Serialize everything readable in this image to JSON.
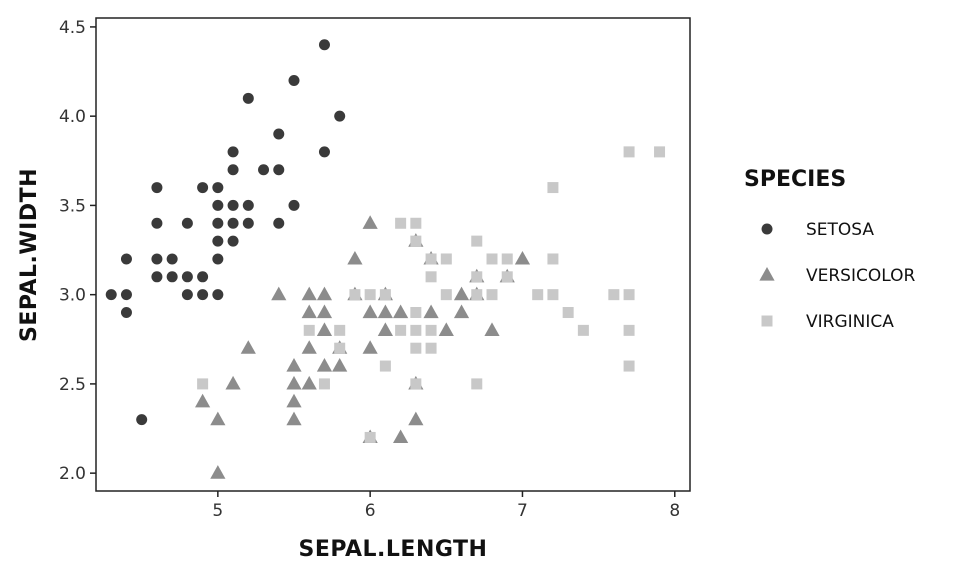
{
  "chart_data": {
    "type": "scatter",
    "xlabel": "SEPAL.LENGTH",
    "ylabel": "SEPAL.WIDTH",
    "xlim": [
      4.2,
      8.1
    ],
    "ylim": [
      1.9,
      4.55
    ],
    "x_ticks": [
      {
        "value": 5,
        "label": "5"
      },
      {
        "value": 6,
        "label": "6"
      },
      {
        "value": 7,
        "label": "7"
      },
      {
        "value": 8,
        "label": "8"
      }
    ],
    "y_ticks": [
      {
        "value": 2.0,
        "label": "2.0"
      },
      {
        "value": 2.5,
        "label": "2.5"
      },
      {
        "value": 3.0,
        "label": "3.0"
      },
      {
        "value": 3.5,
        "label": "3.5"
      },
      {
        "value": 4.0,
        "label": "4.0"
      },
      {
        "value": 4.5,
        "label": "4.5"
      }
    ],
    "grid": false,
    "legend": {
      "title": "SPECIES",
      "position": "right"
    },
    "series": [
      {
        "name": "SETOSA",
        "marker": "circle",
        "color": "#3a3a3a",
        "points": [
          [
            4.3,
            3.0
          ],
          [
            4.4,
            3.0
          ],
          [
            4.4,
            2.9
          ],
          [
            4.4,
            3.2
          ],
          [
            4.5,
            2.3
          ],
          [
            4.6,
            3.1
          ],
          [
            4.6,
            3.2
          ],
          [
            4.6,
            3.4
          ],
          [
            4.6,
            3.6
          ],
          [
            4.7,
            3.2
          ],
          [
            4.7,
            3.1
          ],
          [
            4.8,
            3.0
          ],
          [
            4.8,
            3.1
          ],
          [
            4.8,
            3.4
          ],
          [
            4.9,
            3.0
          ],
          [
            4.9,
            3.1
          ],
          [
            4.9,
            3.6
          ],
          [
            5.0,
            3.0
          ],
          [
            5.0,
            3.2
          ],
          [
            5.0,
            3.3
          ],
          [
            5.0,
            3.4
          ],
          [
            5.0,
            3.5
          ],
          [
            5.0,
            3.6
          ],
          [
            5.1,
            3.3
          ],
          [
            5.1,
            3.4
          ],
          [
            5.1,
            3.5
          ],
          [
            5.1,
            3.7
          ],
          [
            5.1,
            3.8
          ],
          [
            5.2,
            3.4
          ],
          [
            5.2,
            3.5
          ],
          [
            5.2,
            4.1
          ],
          [
            5.3,
            3.7
          ],
          [
            5.4,
            3.4
          ],
          [
            5.4,
            3.7
          ],
          [
            5.4,
            3.9
          ],
          [
            5.5,
            3.5
          ],
          [
            5.5,
            4.2
          ],
          [
            5.7,
            3.8
          ],
          [
            5.7,
            4.4
          ],
          [
            5.8,
            4.0
          ]
        ]
      },
      {
        "name": "VERSICOLOR",
        "marker": "triangle",
        "color": "#8c8c8c",
        "points": [
          [
            4.9,
            2.4
          ],
          [
            5.0,
            2.0
          ],
          [
            5.0,
            2.3
          ],
          [
            5.1,
            2.5
          ],
          [
            5.2,
            2.7
          ],
          [
            5.4,
            3.0
          ],
          [
            5.5,
            2.3
          ],
          [
            5.5,
            2.4
          ],
          [
            5.5,
            2.5
          ],
          [
            5.5,
            2.6
          ],
          [
            5.6,
            2.5
          ],
          [
            5.6,
            2.7
          ],
          [
            5.6,
            2.9
          ],
          [
            5.6,
            3.0
          ],
          [
            5.7,
            2.6
          ],
          [
            5.7,
            2.8
          ],
          [
            5.7,
            2.9
          ],
          [
            5.7,
            3.0
          ],
          [
            5.8,
            2.6
          ],
          [
            5.8,
            2.7
          ],
          [
            5.9,
            3.0
          ],
          [
            5.9,
            3.2
          ],
          [
            6.0,
            2.2
          ],
          [
            6.0,
            2.7
          ],
          [
            6.0,
            2.9
          ],
          [
            6.0,
            3.4
          ],
          [
            6.1,
            2.8
          ],
          [
            6.1,
            2.9
          ],
          [
            6.1,
            3.0
          ],
          [
            6.2,
            2.2
          ],
          [
            6.2,
            2.9
          ],
          [
            6.3,
            2.3
          ],
          [
            6.3,
            2.5
          ],
          [
            6.3,
            3.3
          ],
          [
            6.4,
            2.9
          ],
          [
            6.4,
            3.2
          ],
          [
            6.5,
            2.8
          ],
          [
            6.6,
            2.9
          ],
          [
            6.6,
            3.0
          ],
          [
            6.7,
            3.0
          ],
          [
            6.7,
            3.1
          ],
          [
            6.8,
            2.8
          ],
          [
            6.9,
            3.1
          ],
          [
            7.0,
            3.2
          ]
        ]
      },
      {
        "name": "VIRGINICA",
        "marker": "square",
        "color": "#c8c8c8",
        "points": [
          [
            4.9,
            2.5
          ],
          [
            5.6,
            2.8
          ],
          [
            5.7,
            2.5
          ],
          [
            5.8,
            2.7
          ],
          [
            5.8,
            2.8
          ],
          [
            5.9,
            3.0
          ],
          [
            6.0,
            2.2
          ],
          [
            6.0,
            3.0
          ],
          [
            6.1,
            2.6
          ],
          [
            6.1,
            3.0
          ],
          [
            6.2,
            2.8
          ],
          [
            6.2,
            3.4
          ],
          [
            6.3,
            2.5
          ],
          [
            6.3,
            2.7
          ],
          [
            6.3,
            2.8
          ],
          [
            6.3,
            2.9
          ],
          [
            6.3,
            3.3
          ],
          [
            6.3,
            3.4
          ],
          [
            6.4,
            2.7
          ],
          [
            6.4,
            2.8
          ],
          [
            6.4,
            3.1
          ],
          [
            6.4,
            3.2
          ],
          [
            6.5,
            3.0
          ],
          [
            6.5,
            3.2
          ],
          [
            6.7,
            2.5
          ],
          [
            6.7,
            3.0
          ],
          [
            6.7,
            3.1
          ],
          [
            6.7,
            3.3
          ],
          [
            6.8,
            3.0
          ],
          [
            6.8,
            3.2
          ],
          [
            6.9,
            3.1
          ],
          [
            6.9,
            3.2
          ],
          [
            7.1,
            3.0
          ],
          [
            7.2,
            3.0
          ],
          [
            7.2,
            3.2
          ],
          [
            7.2,
            3.6
          ],
          [
            7.3,
            2.9
          ],
          [
            7.4,
            2.8
          ],
          [
            7.6,
            3.0
          ],
          [
            7.7,
            2.6
          ],
          [
            7.7,
            2.8
          ],
          [
            7.7,
            3.0
          ],
          [
            7.7,
            3.8
          ],
          [
            7.9,
            3.8
          ]
        ]
      }
    ]
  }
}
